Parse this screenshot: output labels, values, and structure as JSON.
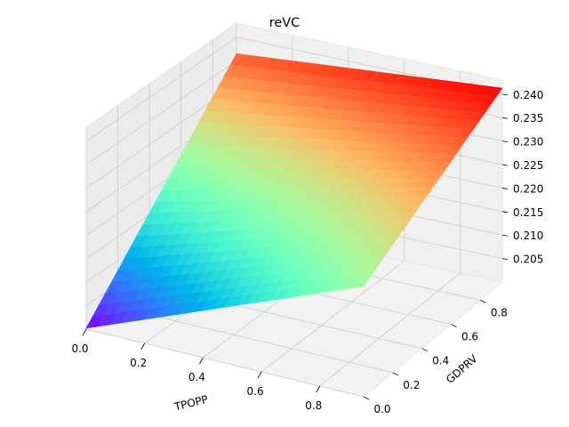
{
  "chart_data": {
    "type": "surface3d",
    "title": "reVC",
    "xlabel": "TPOPP",
    "ylabel": "GDPRV",
    "zlabel": "",
    "x_ticks": [
      "0.0",
      "0.2",
      "0.4",
      "0.6",
      "0.8"
    ],
    "y_ticks": [
      "0.0",
      "0.2",
      "0.4",
      "0.6",
      "0.8"
    ],
    "z_ticks": [
      "0.205",
      "0.210",
      "0.215",
      "0.220",
      "0.225",
      "0.230",
      "0.235",
      "0.240"
    ],
    "xlim": [
      0.0,
      0.95
    ],
    "ylim": [
      0.0,
      0.95
    ],
    "zlim": [
      0.2,
      0.243
    ],
    "grid": true,
    "colormap": "rainbow",
    "surface_corners": [
      {
        "x": 0.0,
        "y": 0.0,
        "z": 0.2002
      },
      {
        "x": 0.95,
        "y": 0.0,
        "z": 0.2235
      },
      {
        "x": 0.0,
        "y": 0.95,
        "z": 0.2365
      },
      {
        "x": 0.95,
        "y": 0.95,
        "z": 0.2413
      }
    ]
  }
}
